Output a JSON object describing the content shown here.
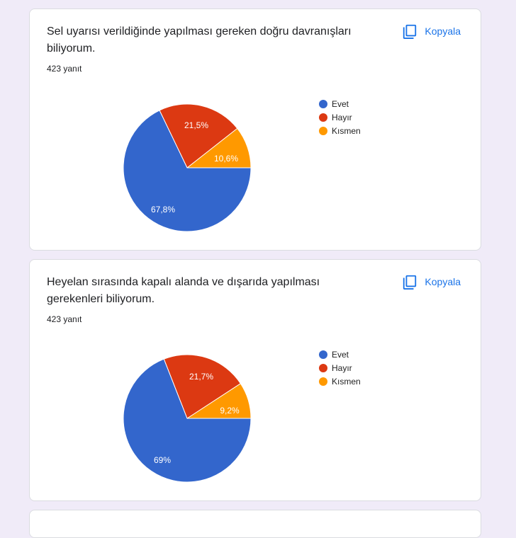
{
  "colors": {
    "evet": "#3366cc",
    "hayir": "#dc3912",
    "kismen": "#ff9900",
    "accent": "#1a73e8",
    "background": "#f0ebf8"
  },
  "cards": [
    {
      "title": "Sel uyarısı verildiğinde yapılması gereken doğru davranışları biliyorum.",
      "count": "423 yanıt",
      "copy_label": "Kopyala",
      "legend": [
        "Evet",
        "Hayır",
        "Kısmen"
      ],
      "labels": [
        "67,8%",
        "21,5%",
        "10,6%"
      ]
    },
    {
      "title": "Heyelan sırasında kapalı alanda ve dışarıda yapılması gerekenleri biliyorum.",
      "count": "423 yanıt",
      "copy_label": "Kopyala",
      "legend": [
        "Evet",
        "Hayır",
        "Kısmen"
      ],
      "labels": [
        "69%",
        "21,7%",
        "9,2%"
      ]
    }
  ],
  "chart_data": [
    {
      "type": "pie",
      "title": "Sel uyarısı verildiğinde yapılması gereken doğru davranışları biliyorum.",
      "subtitle": "423 yanıt",
      "categories": [
        "Evet",
        "Hayır",
        "Kısmen"
      ],
      "values": [
        67.8,
        21.5,
        10.6
      ],
      "colors": [
        "#3366cc",
        "#dc3912",
        "#ff9900"
      ],
      "legend_position": "right"
    },
    {
      "type": "pie",
      "title": "Heyelan sırasında kapalı alanda ve dışarıda yapılması gerekenleri biliyorum.",
      "subtitle": "423 yanıt",
      "categories": [
        "Evet",
        "Hayır",
        "Kısmen"
      ],
      "values": [
        69,
        21.7,
        9.2
      ],
      "colors": [
        "#3366cc",
        "#dc3912",
        "#ff9900"
      ],
      "legend_position": "right"
    }
  ]
}
